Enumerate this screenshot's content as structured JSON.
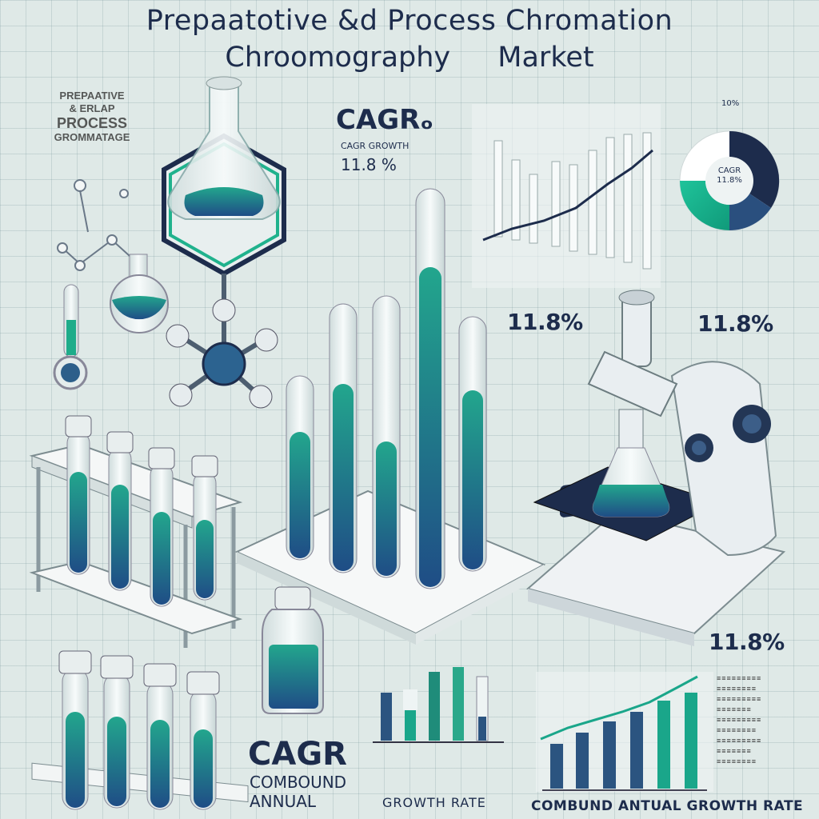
{
  "title": {
    "line1": "Prepaatotive &d Process Chromation",
    "line2_left": "Chroomography",
    "line2_right": "Market"
  },
  "left_caption": {
    "line1": "PREPAATIVE",
    "line2": "& ERLAP",
    "line3": "PROCESS",
    "line4": "GROMMATAGE"
  },
  "cagr_top": {
    "label": "CAGRₒ",
    "subtitle": "CAGR GROWTH",
    "value": "11.8 %"
  },
  "donut": {
    "center_line1": "CAGR",
    "center_line2": "11.8%",
    "top_label": "10%"
  },
  "percent_labels": {
    "left": "11.8%",
    "right": "11.8%",
    "lower_right": "11.8%"
  },
  "bottom_left": {
    "cagr": "CAGR",
    "line2": "COMBOUND",
    "line3": "ANNUAL",
    "growth": "GROWTH RATE"
  },
  "bottom_right": {
    "caption": "COMBUND ANTUAL GROWTH RATE"
  },
  "colors": {
    "background": "#dfe9e7",
    "navy": "#1d2c4c",
    "teal": "#1aa68a",
    "blue": "#2d5f8a",
    "glass": "#f0f4f4"
  }
}
